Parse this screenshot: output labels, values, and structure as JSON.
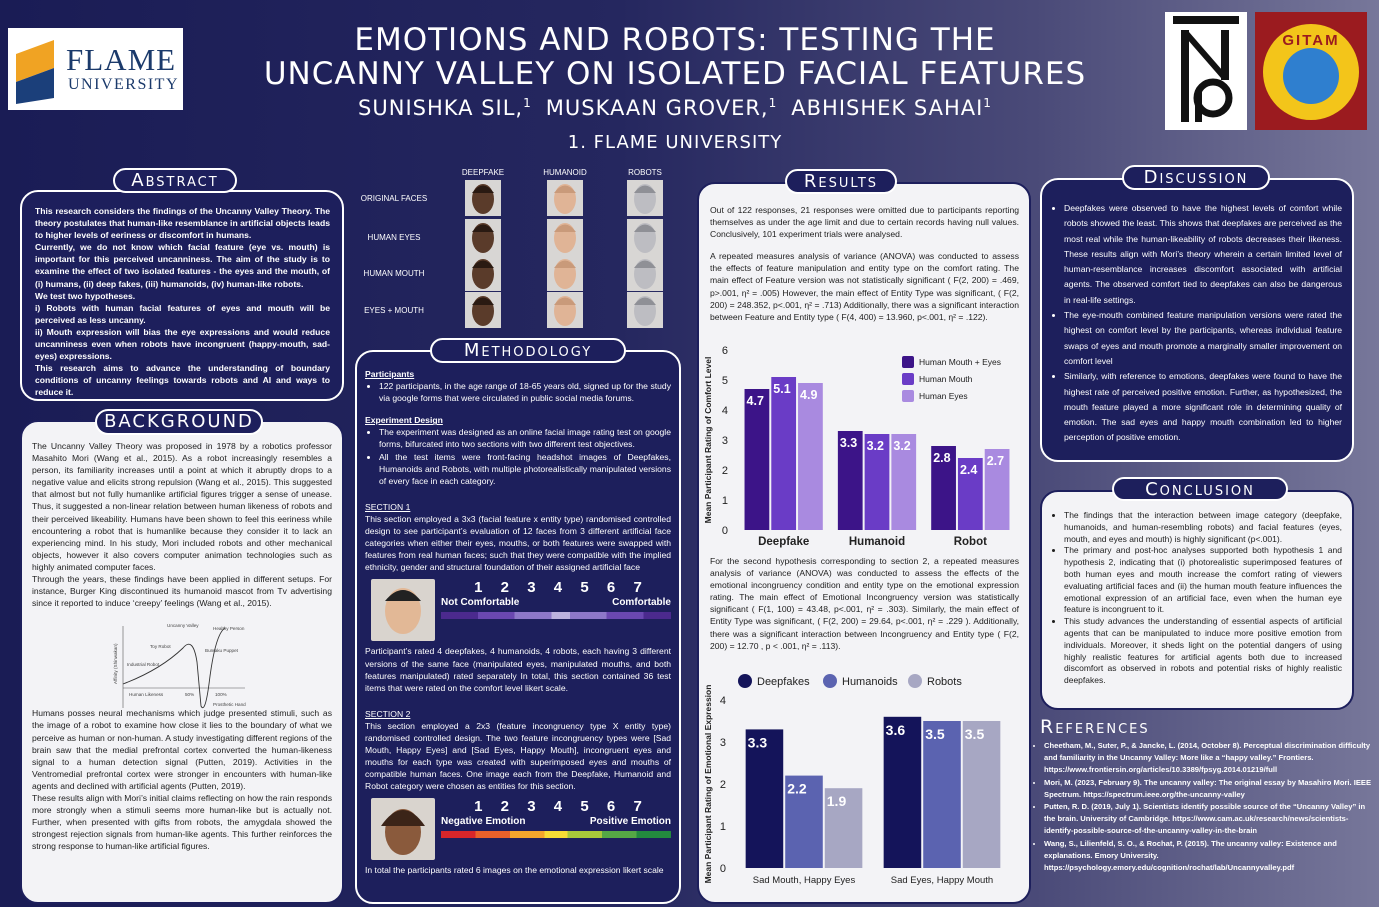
{
  "header": {
    "title_lines": [
      "EMOTIONS AND ROBOTS: TESTING THE",
      "UNCANNY VALLEY ON ISOLATED FACIAL FEATURES"
    ],
    "authors": [
      {
        "name": "SUNISHKA SIL,",
        "affiliation": 1
      },
      {
        "name": "MUSKAAN GROVER,",
        "affiliation": 1
      },
      {
        "name": "ABHISHEK SAHAI",
        "affiliation": 1
      }
    ],
    "affiliation": "1. FLAME UNIVERSITY",
    "logo_left": {
      "name": "FLAME",
      "subtitle": "UNIVERSITY"
    },
    "logo_right": "GITAM"
  },
  "abstract": {
    "heading": "Abstract",
    "paragraphs": [
      "This research considers the findings of the Uncanny Valley Theory. The theory postulates that human-like resemblance in artificial objects leads to higher levels of eeriness or discomfort in humans.",
      "Currently, we do not know which facial feature (eye vs. mouth) is important for this perceived uncanniness. The aim of the study is to examine the effect of two isolated features - the eyes and the mouth, of (i) humans, (ii) deep fakes, (iii) humanoids, (iv) human-like robots.",
      "We test two hypotheses.",
      "i) Robots with human facial features of eyes and mouth will be perceived as less uncanny.",
      "ii) Mouth expression will bias the eye expressions and would reduce uncanniness even when robots have incongruent (happy-mouth, sad-eyes) expressions.",
      "This research aims to advance the understanding of boundary conditions of uncanny feelings towards robots and AI and ways to reduce it."
    ]
  },
  "background": {
    "heading": "BACKGROUND",
    "paragraphs": [
      "The Uncanny Valley Theory was proposed in 1978 by a robotics professor Masahito Mori (Wang et al., 2015). As a robot increasingly resembles a person, its familiarity increases until a point at which it abruptly drops to a negative value and elicits strong repulsion (Wang et al., 2015). This suggested that almost but not fully humanlike artificial figures trigger a sense of unease. Thus, it suggested a non-linear relation between human likeness of robots and their perceived likeability. Humans have been shown to feel this eeriness while encountering a robot that is humanlike because they consider it to lack an experiencing mind. In his study, Mori included robots and other mechanical objects, however it also covers computer animation technologies such as highly animated computer faces.",
      "Through the years, these findings have been applied in different setups. For instance, Burger King discontinued its humanoid mascot from Tv advertising since it reported to induce ‘creepy’ feelings (Wang et al., 2015).",
      "Humans posses neural mechanisms which judge presented stimuli, such as the image of a robot to examine how close it lies to the boundary of what we perceive as human or non-human. A study investigating different regions of the brain saw that the medial prefrontal cortex converted the human-likeness signal to a human detection signal (Putten, 2019). Activities in the Ventromedial prefrontal cortex were stronger in encounters with human-like agents and declined with artificial agents (Putten, 2019).",
      "These results align with Mori’s initial claims reflecting on how the rain responds more strongly when a stimuli seems more human-like but is actually not. Further, when presented with gifts from robots, the amygdala showed the strongest rejection signals from human-like agents. This further reinforces the strong response to human-like artificial figures."
    ],
    "figure_labels": [
      "Uncanny Valley",
      "Healthy Person",
      "Toy Robot",
      "Bunraku Puppet",
      "Industrial Robot",
      "Human Likeness",
      "50%",
      "100%",
      "Prosthetic Hand",
      "Affinity (Shinwakan)"
    ]
  },
  "stimuli": {
    "columns": [
      "DEEPFAKE",
      "HUMANOID",
      "ROBOTS"
    ],
    "rows": [
      "ORIGINAL FACES",
      "HUMAN EYES",
      "HUMAN MOUTH",
      "EYES + MOUTH"
    ]
  },
  "methodology": {
    "heading": "Methodology",
    "participants": {
      "heading": "Participants",
      "bullets": [
        "122 participants, in the age range of 18-65 years old, signed up for the study via google forms that were circulated in public social media forums."
      ]
    },
    "design": {
      "heading": "Experiment Design",
      "bullets": [
        "The experiment was designed as an online facial image rating test on google forms, bifurcated into two sections with two different test objectives.",
        "All the test items were front-facing headshot images of Deepfakes, Humanoids and Robots, with multiple photorealistically manipulated versions of every face in each category."
      ]
    },
    "section1": {
      "heading": "SECTION 1",
      "text": "This section employed a 3x3 (facial feature x entity type) randomised controlled design to see participant’s evaluation of 12 faces from 3 different artificial face categories when either their eyes, mouths, or both features were swapped with features from real human faces; such that they were compatible with the implied ethnicity, gender and structural foundation of their assigned artificial face",
      "scale": [
        1,
        2,
        3,
        4,
        5,
        6,
        7
      ],
      "low": "Not Comfortable",
      "high": "Comfortable",
      "summary": "Participant’s rated 4 deepfakes, 4 humanoids, 4 robots, each having 3 different versions of the same face (manipulated eyes, manipulated mouths, and both features manipulated) rated separately In total, this section contained 36 test items that were rated on the comfort level likert scale."
    },
    "section2": {
      "heading": "SECTION 2",
      "text": "This section employed a 2x3 (feature incongruency type X entity type) randomised controlled design. The two feature incongruency types were [Sad Mouth, Happy Eyes] and [Sad Eyes, Happy Mouth], incongruent eyes and mouths for each type was created with superimposed eyes and mouths of compatible human faces. One image each from the Deepfake, Humanoid and Robot category were chosen as entities for this section.",
      "scale": [
        1,
        2,
        3,
        4,
        5,
        6,
        7
      ],
      "low": "Negative Emotion",
      "high": "Positive Emotion",
      "summary": "In total the participants rated 6 images on the emotional expression likert scale"
    }
  },
  "results": {
    "heading": "Results",
    "paragraphs": [
      "Out of 122 responses, 21 responses were omitted due to participants reporting themselves as under the age limit and due to certain records having null values. Conclusively, 101 experiment trials were analysed.",
      "A repeated measures analysis of variance (ANOVA) was conducted to assess the effects of feature manipulation and entity type on the comfort rating. The main effect of Feature version was not statistically significant ( F(2, 200) = .469, p>.001, η² = .005) However, the main effect of Entity Type was significant, ( F(2, 200) = 248.352, p<.001, η² = .713) Additionally, there was a significant interaction between Feature and Entity type ( F(4, 400) = 13.960, p<.001, η² = .122).",
      "For the second hypothesis corresponding to section 2, a repeated measures analysis of variance (ANOVA) was conducted to assess the effects of the emotional incongruency condition and entity type on the emotional expression rating. The main effect of Emotional Incongruency version was statistically significant ( F(1, 100) = 43.48, p<.001, η² = .303). Similarly, the main effect of Entity Type was significant, ( F(2, 200) = 29.64, p<.001, η² = .229 ). Additionally, there was a significant interaction between Incongruency and Entity type ( F(2, 200) = 12.70 , p < .001, η² = .113)."
    ]
  },
  "chart_data": [
    {
      "type": "bar",
      "ylabel": "Mean Participant Rating of Comfort Level",
      "categories": [
        "Deepfake",
        "Humanoid",
        "Robot"
      ],
      "series": [
        {
          "name": "Human Mouth + Eyes",
          "color": "#3c1488",
          "values": [
            4.7,
            3.3,
            2.8
          ]
        },
        {
          "name": "Human Mouth",
          "color": "#6a3cc6",
          "values": [
            5.1,
            3.2,
            2.4
          ]
        },
        {
          "name": "Human Eyes",
          "color": "#a98ae0",
          "values": [
            4.9,
            3.2,
            2.7
          ]
        }
      ],
      "ylim": [
        0,
        6
      ],
      "yticks": [
        0,
        1,
        2,
        3,
        4,
        5,
        6
      ],
      "grid": false,
      "legend": "upper right"
    },
    {
      "type": "bar",
      "ylabel": "Mean Participant Rating of Emotional Expression",
      "categories": [
        "Sad Mouth, Happy Eyes",
        "Sad Eyes, Happy Mouth"
      ],
      "series": [
        {
          "name": "Deepfakes",
          "color": "#14145a",
          "values": [
            3.3,
            3.6
          ]
        },
        {
          "name": "Humanoids",
          "color": "#5b63b0",
          "values": [
            2.2,
            3.5
          ]
        },
        {
          "name": "Robots",
          "color": "#a7a7c3",
          "values": [
            1.9,
            3.5
          ]
        }
      ],
      "ylim": [
        0,
        4
      ],
      "yticks": [
        0,
        1,
        2,
        3,
        4
      ],
      "grid": false,
      "legend": "top"
    }
  ],
  "discussion": {
    "heading": "Discussion",
    "bullets": [
      "Deepfakes were observed to have the highest levels of comfort while robots showed the least. This shows that deepfakes are perceived as the most real while the human-likeability of robots decreases their likeness. These results align with Mori’s theory wherein a certain limited level of human-resemblance increases discomfort associated with artificial agents. The observed comfort tied to deepfakes can also be dangerous in real-life settings.",
      "The eye-mouth combined feature manipulation versions were rated the highest on comfort level by the participants, whereas individual feature swaps of eyes and mouth promote a marginally smaller improvement on comfort level",
      "Similarly, with reference to emotions, deepfakes were found to have the highest rate of perceived positive emotion. Further, as hypothesized, the mouth feature played a more significant role in determining quality of emotion. The sad eyes and happy mouth combination led to higher perception of positive emotion."
    ]
  },
  "conclusion": {
    "heading": "Conclusion",
    "bullets": [
      "The findings that the interaction between image category (deepfake, humanoids, and human-resembling robots) and facial features (eyes, mouth, and eyes and mouth) is highly significant (p<.001).",
      "The primary and post-hoc analyses supported both hypothesis 1 and hypothesis 2, indicating that (i) photorealistic superimposed features of both human eyes and mouth increase the comfort rating of viewers evaluating artificial faces and (ii) the human mouth feature influences the emotional expression of an artificial face, even when the human eye feature is incongruent to it.",
      "This study advances the understanding of essential aspects of artificial agents that can be manipulated to induce more positive emotion from individuals. Moreover, it sheds light on the potential dangers of using highly realistic features for artificial agents both due to increased discomfort as observed in robots and potential risks of highly realistic deepfakes."
    ]
  },
  "references": {
    "heading": "References",
    "items": [
      "Cheetham, M., Suter, P., & Jancke, L. (2014, October 8). Perceptual discrimination difficulty and familiarity in the Uncanny Valley: More like a “happy valley.” Frontiers. https://www.frontiersin.org/articles/10.3389/fpsyg.2014.01219/full",
      "Mori, M. (2023, February 9). The uncanny valley: The original essay by Masahiro Mori. IEEE Spectrum. https://spectrum.ieee.org/the-uncanny-valley",
      "Putten, R. D. (2019, July 1). Scientists identify possible source of the “Uncanny Valley” in the brain. University of Cambridge. https://www.cam.ac.uk/research/news/scientists-identify-possible-source-of-the-uncanny-valley-in-the-brain",
      "Wang, S., Lilienfeld, S. O., & Rochat, P. (2015). The uncanny valley: Existence and explanations. Emory University. https://psychology.emory.edu/cognition/rochat/lab/Uncannyvalley.pdf"
    ]
  }
}
